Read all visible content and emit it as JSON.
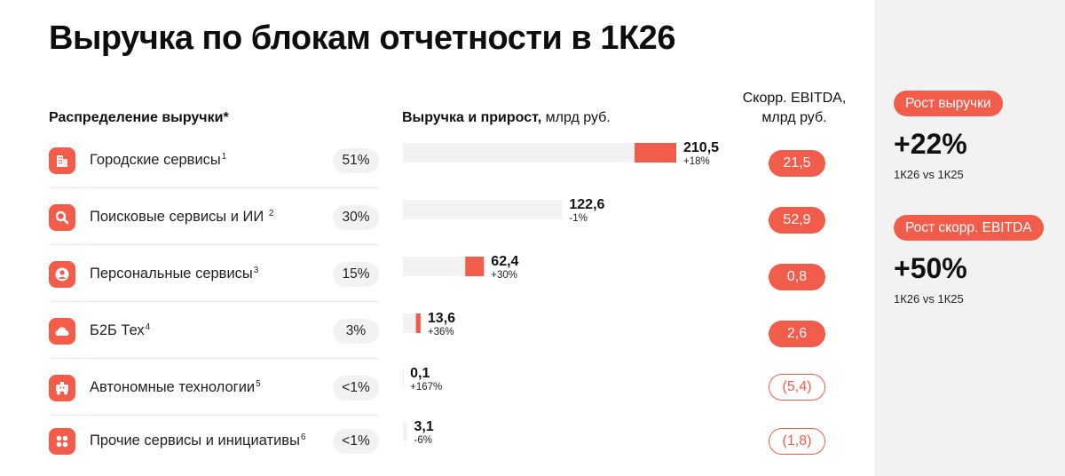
{
  "title": "Выручка по блокам отчетности в 1К26",
  "headers": {
    "distribution": "Распределение выручки*",
    "revenue_bold": "Выручка и прирост,",
    "revenue_rest": " млрд руб.",
    "ebitda_line1": "Скорр. EBITDA,",
    "ebitda_line2": "млрд руб."
  },
  "segments": [
    {
      "name": "Городские сервисы",
      "note": "1",
      "share": "51%",
      "icon": "building-icon"
    },
    {
      "name": "Поисковые сервисы и ИИ ",
      "note": "2",
      "share": "30%",
      "icon": "search-icon"
    },
    {
      "name": "Персональные сервисы",
      "note": "3",
      "share": "15%",
      "icon": "person-icon"
    },
    {
      "name": "Б2Б Тех",
      "note": "4",
      "share": "3%",
      "icon": "cloud-icon"
    },
    {
      "name": "Автономные технологии",
      "note": "5",
      "share": "<1%",
      "icon": "robot-icon"
    },
    {
      "name": "Прочие сервисы и инициативы",
      "note": "6",
      "share": "<1%",
      "icon": "grid-icon"
    }
  ],
  "chart_data": {
    "type": "bar",
    "orientation": "horizontal",
    "unit": "млрд руб.",
    "categories": [
      "Городские сервисы",
      "Поисковые сервисы и ИИ",
      "Персональные сервисы",
      "Б2Б Тех",
      "Автономные технологии",
      "Прочие сервисы и инициативы"
    ],
    "values": [
      210.5,
      122.6,
      62.4,
      13.6,
      0.1,
      3.1
    ],
    "growth_pct": [
      18,
      -1,
      30,
      36,
      167,
      -6
    ],
    "value_labels": [
      "210,5",
      "122,6",
      "62,4",
      "13,6",
      "0,1",
      "3,1"
    ],
    "growth_labels": [
      "+18%",
      "-1%",
      "+30%",
      "+36%",
      "+167%",
      "-6%"
    ],
    "ebitda": [
      21.5,
      52.9,
      0.8,
      2.6,
      -5.4,
      -1.8
    ],
    "ebitda_labels": [
      "21,5",
      "52,9",
      "0,8",
      "2,6",
      "(5,4)",
      "(1,8)"
    ],
    "colors": {
      "prior": "#f2f2f2",
      "increment": "#f25c4a"
    }
  },
  "sidebar": {
    "revenue_growth_label": "Рост выручки",
    "revenue_growth_value": "+22%",
    "revenue_growth_period": "1К26 vs 1К25",
    "ebitda_growth_label": "Рост скорр. EBITDA",
    "ebitda_growth_value": "+50%",
    "ebitda_growth_period": "1К26 vs 1К25"
  },
  "colors": {
    "accent": "#f25c4a",
    "pill_bg": "#f2f2f2",
    "sidebar_bg": "#f2f2f2"
  }
}
